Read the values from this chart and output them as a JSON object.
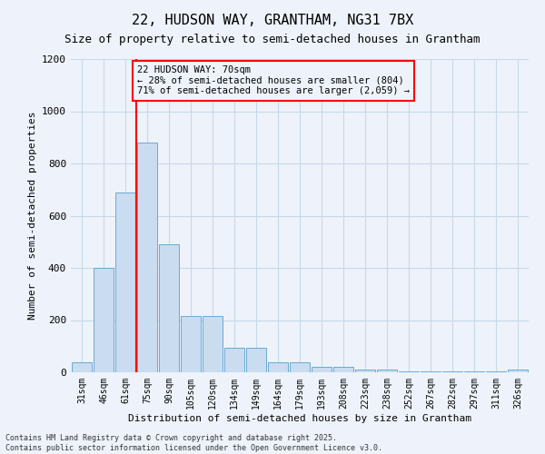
{
  "title1": "22, HUDSON WAY, GRANTHAM, NG31 7BX",
  "title2": "Size of property relative to semi-detached houses in Grantham",
  "xlabel": "Distribution of semi-detached houses by size in Grantham",
  "ylabel": "Number of semi-detached properties",
  "categories": [
    "31sqm",
    "46sqm",
    "61sqm",
    "75sqm",
    "90sqm",
    "105sqm",
    "120sqm",
    "134sqm",
    "149sqm",
    "164sqm",
    "179sqm",
    "193sqm",
    "208sqm",
    "223sqm",
    "238sqm",
    "252sqm",
    "267sqm",
    "282sqm",
    "297sqm",
    "311sqm",
    "326sqm"
  ],
  "values": [
    40,
    400,
    690,
    880,
    490,
    215,
    215,
    95,
    95,
    40,
    40,
    20,
    20,
    10,
    10,
    5,
    5,
    5,
    5,
    5,
    10
  ],
  "bar_color": "#c9dcf0",
  "bar_edge_color": "#6aaad4",
  "grid_color": "#c8d8e8",
  "background_color": "#eef3fb",
  "red_line_x": 2.5,
  "ylim": [
    0,
    1200
  ],
  "yticks": [
    0,
    200,
    400,
    600,
    800,
    1000,
    1200
  ],
  "annotation_line1": "22 HUDSON WAY: 70sqm",
  "annotation_line2": "← 28% of semi-detached houses are smaller (804)",
  "annotation_line3": "71% of semi-detached houses are larger (2,059) →",
  "footer1": "Contains HM Land Registry data © Crown copyright and database right 2025.",
  "footer2": "Contains public sector information licensed under the Open Government Licence v3.0."
}
